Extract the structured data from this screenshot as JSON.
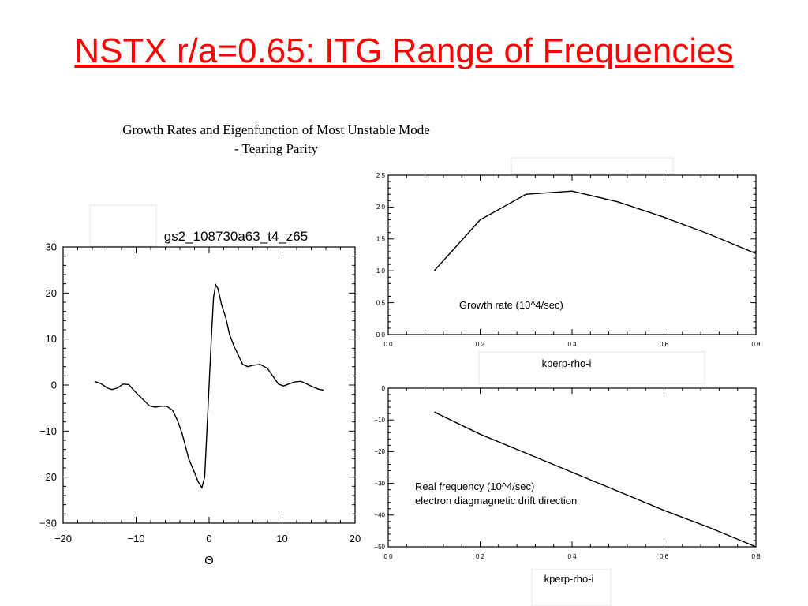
{
  "slide": {
    "title": "NSTX r/a=0.65: ITG Range of Frequencies",
    "title_color": "#ff0000"
  },
  "figure": {
    "title_line1": "Growth Rates and Eigenfunction of Most Unstable Mode",
    "title_line2": "- Tearing Parity"
  },
  "chart_data": [
    {
      "type": "line",
      "title": "gs2_108730a63_t4_z65",
      "xlabel": "Θ",
      "ylabel": "",
      "xlim": [
        -20,
        20
      ],
      "ylim": [
        -30,
        30
      ],
      "xticks": [
        -20,
        -10,
        0,
        10,
        20
      ],
      "yticks": [
        -30,
        -20,
        -10,
        0,
        10,
        20,
        30
      ],
      "xtick_labels": [
        "−20",
        "−10",
        "0",
        "10",
        "20"
      ],
      "ytick_labels": [
        "−30",
        "−20",
        "−10",
        "0",
        "10",
        "20",
        "30"
      ],
      "grid": false,
      "series": [
        {
          "color": "#000000",
          "x": [
            -15.7,
            -14.8,
            -14.0,
            -13.3,
            -12.5,
            -11.8,
            -11.0,
            -10.4,
            -9.8,
            -9.0,
            -8.2,
            -7.4,
            -6.6,
            -5.8,
            -5.0,
            -4.3,
            -3.7,
            -3.2,
            -2.8,
            -2.4,
            -2.0,
            -1.5,
            -1.0,
            -0.6,
            -0.3,
            0.0,
            0.3,
            0.6,
            0.9,
            1.2,
            1.7,
            2.3,
            2.8,
            3.4,
            4.0,
            4.6,
            5.3,
            6.0,
            7.0,
            8.0,
            8.8,
            9.5,
            10.2,
            11.0,
            11.8,
            12.6,
            13.4,
            14.2,
            15.0,
            15.7
          ],
          "y": [
            0.8,
            0.3,
            -0.6,
            -1.0,
            -0.6,
            0.2,
            0.1,
            -1.0,
            -2.0,
            -3.2,
            -4.5,
            -4.8,
            -4.6,
            -4.6,
            -5.5,
            -7.8,
            -10.5,
            -13.5,
            -16.0,
            -17.5,
            -19.0,
            -21.0,
            -22.3,
            -20.0,
            -10.0,
            0.0,
            10.0,
            19.0,
            21.8,
            21.0,
            17.5,
            14.5,
            11.0,
            8.5,
            6.5,
            4.5,
            4.0,
            4.3,
            4.5,
            3.6,
            1.8,
            0.2,
            -0.2,
            0.3,
            0.7,
            0.8,
            0.2,
            -0.4,
            -0.9,
            -1.1
          ]
        }
      ]
    },
    {
      "type": "line",
      "title": "",
      "annotation": "Growth rate (10^4/sec)",
      "xlabel": "kperp-rho-i",
      "ylabel": "",
      "xlim": [
        0,
        0.8
      ],
      "ylim": [
        0,
        2.5
      ],
      "xticks": [
        0,
        0.2,
        0.4,
        0.6,
        0.8
      ],
      "yticks": [
        0,
        0.5,
        1.0,
        1.5,
        2.0,
        2.5
      ],
      "xtick_labels": [
        "0 0",
        "0 2",
        "0 4",
        "0 6",
        "0 8"
      ],
      "ytick_labels": [
        "0 0",
        "0 5",
        "1 0",
        "1 5",
        "2 0",
        "2 5"
      ],
      "grid": false,
      "series": [
        {
          "color": "#000000",
          "x": [
            0.1,
            0.2,
            0.3,
            0.4,
            0.5,
            0.6,
            0.7,
            0.8
          ],
          "y": [
            1.0,
            1.8,
            2.2,
            2.25,
            2.08,
            1.84,
            1.57,
            1.27
          ]
        }
      ]
    },
    {
      "type": "line",
      "title": "",
      "annotation_line1": "Real frequency (10^4/sec)",
      "annotation_line2": "electron diagmagnetic drift direction",
      "xlabel": "kperp-rho-i",
      "ylabel": "",
      "xlim": [
        0,
        0.8
      ],
      "ylim": [
        -50,
        0
      ],
      "xticks": [
        0,
        0.2,
        0.4,
        0.6,
        0.8
      ],
      "yticks": [
        -50,
        -40,
        -30,
        -20,
        -10,
        0
      ],
      "xtick_labels": [
        "0 0",
        "0 2",
        "0 4",
        "0 6",
        "0 8"
      ],
      "ytick_labels": [
        "−50",
        "−40",
        "−30",
        "−20",
        "−10",
        "0"
      ],
      "grid": false,
      "series": [
        {
          "color": "#000000",
          "x": [
            0.1,
            0.2,
            0.3,
            0.4,
            0.5,
            0.6,
            0.7,
            0.8
          ],
          "y": [
            -7.5,
            -14.5,
            -20.5,
            -26.5,
            -32.5,
            -38.5,
            -44.0,
            -50.0
          ]
        }
      ]
    }
  ]
}
